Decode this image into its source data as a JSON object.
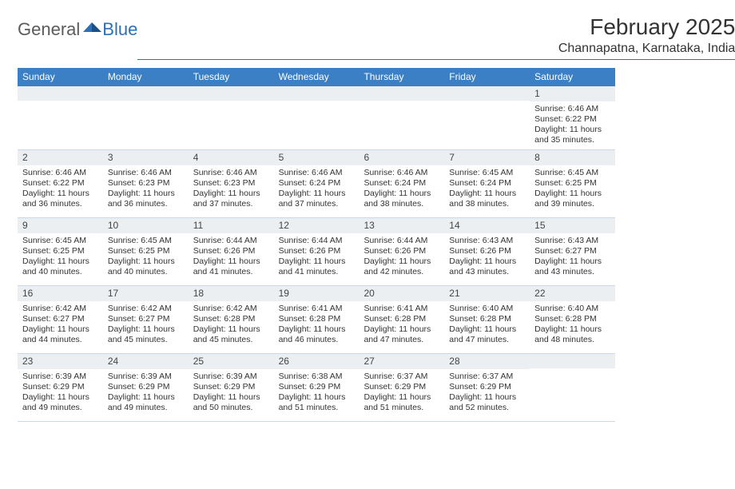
{
  "logo": {
    "general": "General",
    "blue": "Blue"
  },
  "title": "February 2025",
  "location": "Channapatna, Karnataka, India",
  "colors": {
    "header_bar": "#3b7fc4",
    "accent_line": "#2f6fb3",
    "daynum_bg": "#eceff2",
    "text": "#333333",
    "logo_gray": "#5b5b5b"
  },
  "day_names": [
    "Sunday",
    "Monday",
    "Tuesday",
    "Wednesday",
    "Thursday",
    "Friday",
    "Saturday"
  ],
  "weeks": [
    [
      {
        "n": "",
        "lines": []
      },
      {
        "n": "",
        "lines": []
      },
      {
        "n": "",
        "lines": []
      },
      {
        "n": "",
        "lines": []
      },
      {
        "n": "",
        "lines": []
      },
      {
        "n": "",
        "lines": []
      },
      {
        "n": "1",
        "lines": [
          "Sunrise: 6:46 AM",
          "Sunset: 6:22 PM",
          "Daylight: 11 hours and 35 minutes."
        ]
      }
    ],
    [
      {
        "n": "2",
        "lines": [
          "Sunrise: 6:46 AM",
          "Sunset: 6:22 PM",
          "Daylight: 11 hours and 36 minutes."
        ]
      },
      {
        "n": "3",
        "lines": [
          "Sunrise: 6:46 AM",
          "Sunset: 6:23 PM",
          "Daylight: 11 hours and 36 minutes."
        ]
      },
      {
        "n": "4",
        "lines": [
          "Sunrise: 6:46 AM",
          "Sunset: 6:23 PM",
          "Daylight: 11 hours and 37 minutes."
        ]
      },
      {
        "n": "5",
        "lines": [
          "Sunrise: 6:46 AM",
          "Sunset: 6:24 PM",
          "Daylight: 11 hours and 37 minutes."
        ]
      },
      {
        "n": "6",
        "lines": [
          "Sunrise: 6:46 AM",
          "Sunset: 6:24 PM",
          "Daylight: 11 hours and 38 minutes."
        ]
      },
      {
        "n": "7",
        "lines": [
          "Sunrise: 6:45 AM",
          "Sunset: 6:24 PM",
          "Daylight: 11 hours and 38 minutes."
        ]
      },
      {
        "n": "8",
        "lines": [
          "Sunrise: 6:45 AM",
          "Sunset: 6:25 PM",
          "Daylight: 11 hours and 39 minutes."
        ]
      }
    ],
    [
      {
        "n": "9",
        "lines": [
          "Sunrise: 6:45 AM",
          "Sunset: 6:25 PM",
          "Daylight: 11 hours and 40 minutes."
        ]
      },
      {
        "n": "10",
        "lines": [
          "Sunrise: 6:45 AM",
          "Sunset: 6:25 PM",
          "Daylight: 11 hours and 40 minutes."
        ]
      },
      {
        "n": "11",
        "lines": [
          "Sunrise: 6:44 AM",
          "Sunset: 6:26 PM",
          "Daylight: 11 hours and 41 minutes."
        ]
      },
      {
        "n": "12",
        "lines": [
          "Sunrise: 6:44 AM",
          "Sunset: 6:26 PM",
          "Daylight: 11 hours and 41 minutes."
        ]
      },
      {
        "n": "13",
        "lines": [
          "Sunrise: 6:44 AM",
          "Sunset: 6:26 PM",
          "Daylight: 11 hours and 42 minutes."
        ]
      },
      {
        "n": "14",
        "lines": [
          "Sunrise: 6:43 AM",
          "Sunset: 6:26 PM",
          "Daylight: 11 hours and 43 minutes."
        ]
      },
      {
        "n": "15",
        "lines": [
          "Sunrise: 6:43 AM",
          "Sunset: 6:27 PM",
          "Daylight: 11 hours and 43 minutes."
        ]
      }
    ],
    [
      {
        "n": "16",
        "lines": [
          "Sunrise: 6:42 AM",
          "Sunset: 6:27 PM",
          "Daylight: 11 hours and 44 minutes."
        ]
      },
      {
        "n": "17",
        "lines": [
          "Sunrise: 6:42 AM",
          "Sunset: 6:27 PM",
          "Daylight: 11 hours and 45 minutes."
        ]
      },
      {
        "n": "18",
        "lines": [
          "Sunrise: 6:42 AM",
          "Sunset: 6:28 PM",
          "Daylight: 11 hours and 45 minutes."
        ]
      },
      {
        "n": "19",
        "lines": [
          "Sunrise: 6:41 AM",
          "Sunset: 6:28 PM",
          "Daylight: 11 hours and 46 minutes."
        ]
      },
      {
        "n": "20",
        "lines": [
          "Sunrise: 6:41 AM",
          "Sunset: 6:28 PM",
          "Daylight: 11 hours and 47 minutes."
        ]
      },
      {
        "n": "21",
        "lines": [
          "Sunrise: 6:40 AM",
          "Sunset: 6:28 PM",
          "Daylight: 11 hours and 47 minutes."
        ]
      },
      {
        "n": "22",
        "lines": [
          "Sunrise: 6:40 AM",
          "Sunset: 6:28 PM",
          "Daylight: 11 hours and 48 minutes."
        ]
      }
    ],
    [
      {
        "n": "23",
        "lines": [
          "Sunrise: 6:39 AM",
          "Sunset: 6:29 PM",
          "Daylight: 11 hours and 49 minutes."
        ]
      },
      {
        "n": "24",
        "lines": [
          "Sunrise: 6:39 AM",
          "Sunset: 6:29 PM",
          "Daylight: 11 hours and 49 minutes."
        ]
      },
      {
        "n": "25",
        "lines": [
          "Sunrise: 6:39 AM",
          "Sunset: 6:29 PM",
          "Daylight: 11 hours and 50 minutes."
        ]
      },
      {
        "n": "26",
        "lines": [
          "Sunrise: 6:38 AM",
          "Sunset: 6:29 PM",
          "Daylight: 11 hours and 51 minutes."
        ]
      },
      {
        "n": "27",
        "lines": [
          "Sunrise: 6:37 AM",
          "Sunset: 6:29 PM",
          "Daylight: 11 hours and 51 minutes."
        ]
      },
      {
        "n": "28",
        "lines": [
          "Sunrise: 6:37 AM",
          "Sunset: 6:29 PM",
          "Daylight: 11 hours and 52 minutes."
        ]
      },
      {
        "n": "",
        "lines": []
      }
    ]
  ]
}
